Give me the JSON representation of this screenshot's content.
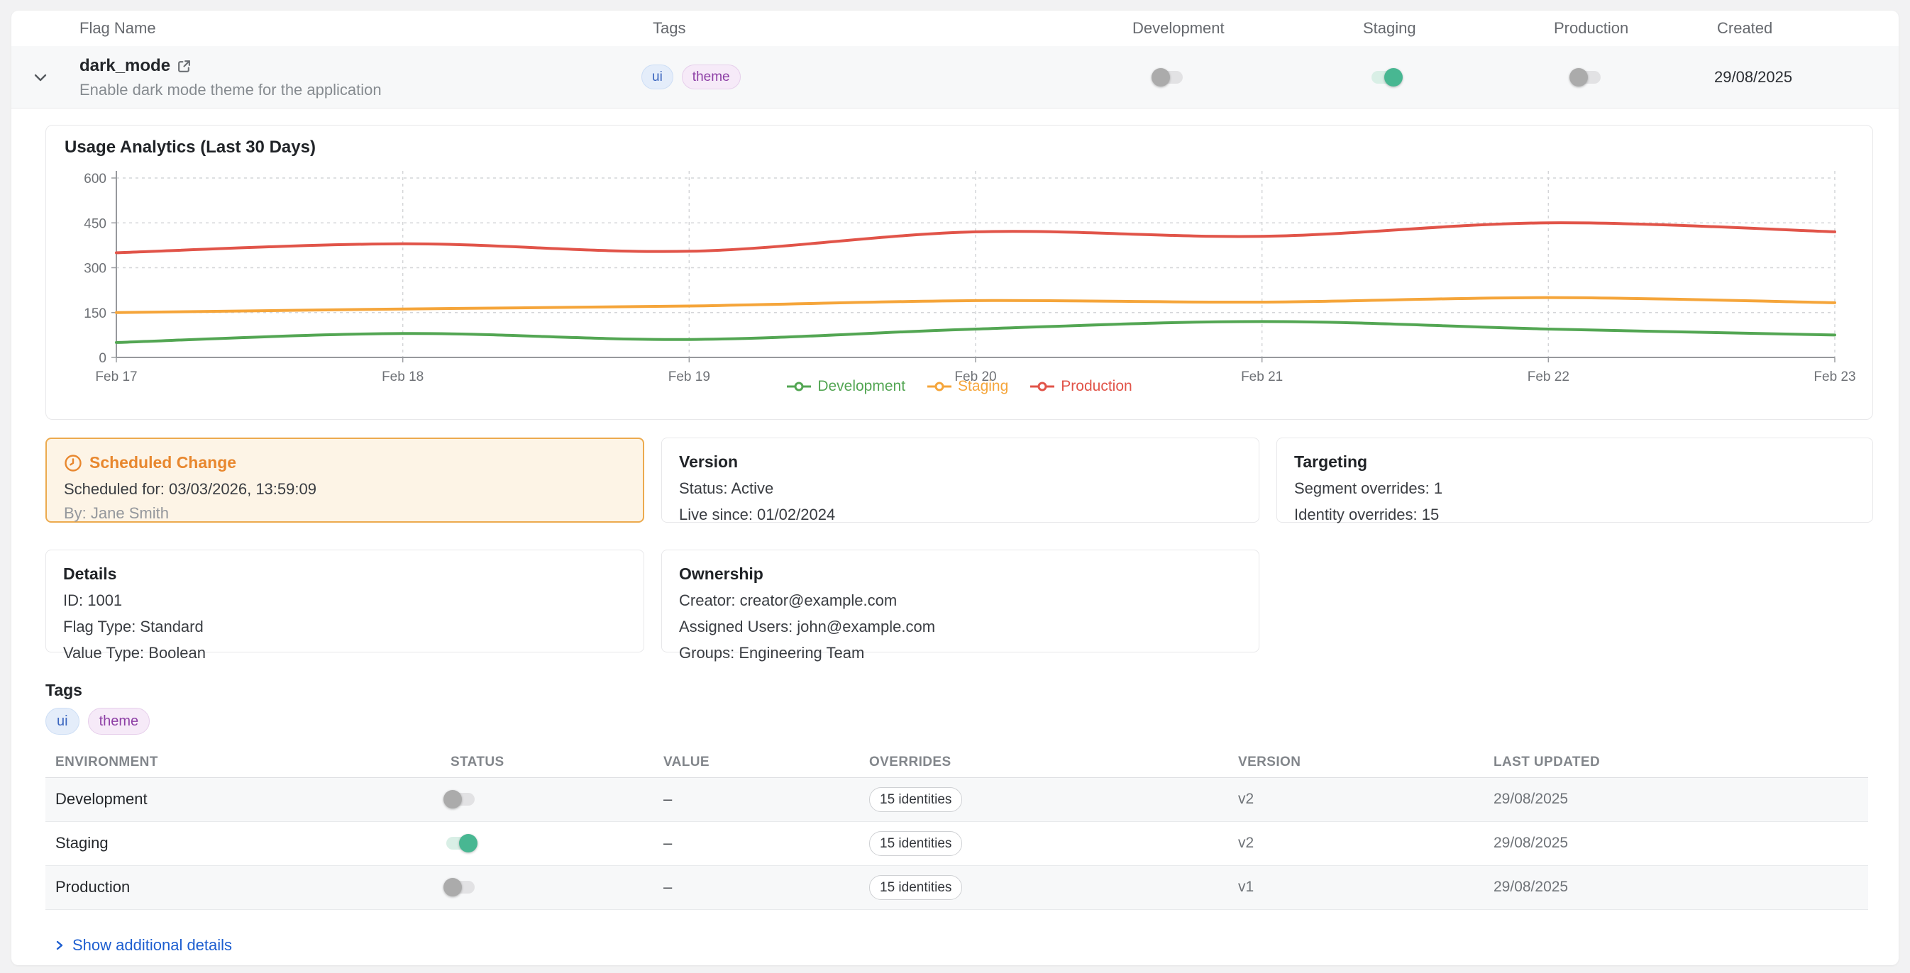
{
  "colors": {
    "accent_green_toggle": "#48b792",
    "toggle_off_knob": "#ababab",
    "link_blue": "#1d5ed0",
    "scheduled_border": "#ecaa4e",
    "scheduled_title": "#e8872e",
    "tag_blue_text": "#3b66bf",
    "tag_purple_text": "#8d3fa5",
    "series_development": "#53a653",
    "series_staging": "#f5a53a",
    "series_production": "#e15449"
  },
  "flag_table": {
    "headers": {
      "flag_name": "Flag Name",
      "tags": "Tags",
      "development": "Development",
      "staging": "Staging",
      "production": "Production",
      "created": "Created"
    },
    "row": {
      "name": "dark_mode",
      "description": "Enable dark mode theme for the application",
      "tags": [
        "ui",
        "theme"
      ],
      "toggles": {
        "development": false,
        "staging": true,
        "production": false
      },
      "created": "29/08/2025"
    }
  },
  "chart_data": {
    "type": "line",
    "title": "Usage Analytics (Last 30 Days)",
    "x": [
      "Feb 17",
      "Feb 18",
      "Feb 19",
      "Feb 20",
      "Feb 21",
      "Feb 22",
      "Feb 23"
    ],
    "ylim": [
      0,
      600
    ],
    "yticks": [
      0,
      150,
      300,
      450,
      600
    ],
    "grid": true,
    "legend_position": "bottom",
    "series": [
      {
        "name": "Development",
        "color": "#53a653",
        "values": [
          50,
          80,
          60,
          95,
          120,
          95,
          75
        ]
      },
      {
        "name": "Staging",
        "color": "#f5a53a",
        "values": [
          150,
          162,
          172,
          190,
          185,
          200,
          183
        ]
      },
      {
        "name": "Production",
        "color": "#e15449",
        "values": [
          350,
          380,
          355,
          420,
          405,
          450,
          420
        ]
      }
    ]
  },
  "cards": {
    "scheduled_change": {
      "title": "Scheduled Change",
      "scheduled_for": "Scheduled for: 03/03/2026, 13:59:09",
      "by": "By: Jane Smith"
    },
    "version": {
      "title": "Version",
      "lines": [
        "Status: Active",
        "Live since: 01/02/2024"
      ]
    },
    "targeting": {
      "title": "Targeting",
      "lines": [
        "Segment overrides: 1",
        "Identity overrides: 15"
      ]
    },
    "details": {
      "title": "Details",
      "lines": [
        "ID: 1001",
        "Flag Type: Standard",
        "Value Type: Boolean"
      ]
    },
    "ownership": {
      "title": "Ownership",
      "lines": [
        "Creator: creator@example.com",
        "Assigned Users: john@example.com",
        "Groups: Engineering Team"
      ]
    }
  },
  "tags_section": {
    "title": "Tags",
    "tags": [
      "ui",
      "theme"
    ]
  },
  "environments_table": {
    "headers": [
      "ENVIRONMENT",
      "STATUS",
      "VALUE",
      "OVERRIDES",
      "VERSION",
      "LAST UPDATED"
    ],
    "rows": [
      {
        "environment": "Development",
        "enabled": false,
        "value": "–",
        "overrides": "15 identities",
        "version": "v2",
        "last_updated": "29/08/2025"
      },
      {
        "environment": "Staging",
        "enabled": true,
        "value": "–",
        "overrides": "15 identities",
        "version": "v2",
        "last_updated": "29/08/2025"
      },
      {
        "environment": "Production",
        "enabled": false,
        "value": "–",
        "overrides": "15 identities",
        "version": "v1",
        "last_updated": "29/08/2025"
      }
    ]
  },
  "footer": {
    "show_details": "Show additional details"
  }
}
